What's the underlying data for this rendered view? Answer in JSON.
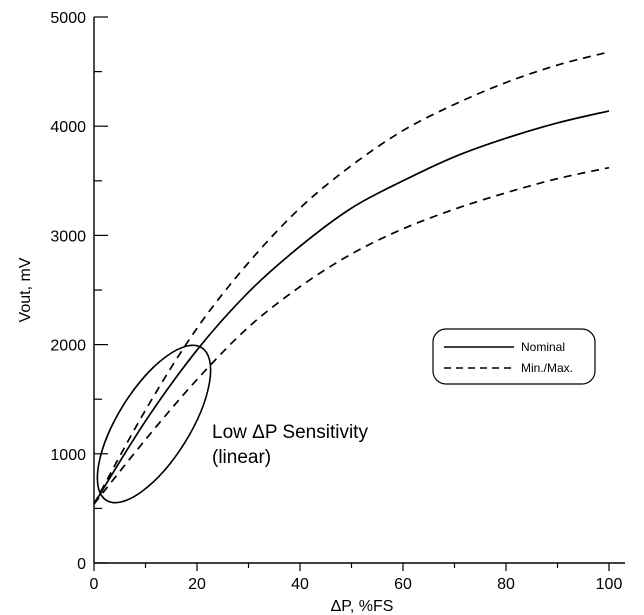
{
  "chart_data": {
    "type": "line",
    "title": "",
    "xlabel": "ΔP,  %FS",
    "ylabel": "Vout,  mV",
    "xlim": [
      0,
      100
    ],
    "ylim": [
      0,
      5000
    ],
    "x_ticks": [
      0,
      20,
      40,
      60,
      80,
      100
    ],
    "y_ticks": [
      0,
      1000,
      2000,
      3000,
      4000,
      5000
    ],
    "x_tick_labels": [
      "0",
      "20",
      "40",
      "60",
      "80",
      "100"
    ],
    "y_tick_labels": [
      "0",
      "1000",
      "2000",
      "3000",
      "4000",
      "5000"
    ],
    "grid": false,
    "legend": {
      "position": "right",
      "entries": [
        {
          "label": "Nominal",
          "style": "solid"
        },
        {
          "label": "Min./Max.",
          "style": "dashed"
        }
      ]
    },
    "series": [
      {
        "name": "Nominal",
        "style": "solid",
        "x": [
          0,
          10,
          20,
          30,
          40,
          50,
          60,
          70,
          80,
          90,
          100
        ],
        "y": [
          540,
          1300,
          1950,
          2480,
          2900,
          3250,
          3500,
          3720,
          3890,
          4030,
          4140
        ]
      },
      {
        "name": "Max.",
        "style": "dashed",
        "x": [
          0,
          10,
          20,
          30,
          40,
          50,
          60,
          70,
          80,
          90,
          100
        ],
        "y": [
          540,
          1400,
          2150,
          2750,
          3250,
          3640,
          3960,
          4200,
          4400,
          4560,
          4680
        ]
      },
      {
        "name": "Min.",
        "style": "dashed",
        "x": [
          0,
          10,
          20,
          30,
          40,
          50,
          60,
          70,
          80,
          90,
          100
        ],
        "y": [
          540,
          1130,
          1680,
          2160,
          2530,
          2830,
          3060,
          3240,
          3390,
          3520,
          3620
        ]
      }
    ],
    "annotations": [
      {
        "text_lines": [
          "Low ΔP Sensitivity",
          "(linear)"
        ],
        "shape": "ellipse",
        "x_center": 11,
        "y_center": 1220
      }
    ]
  }
}
